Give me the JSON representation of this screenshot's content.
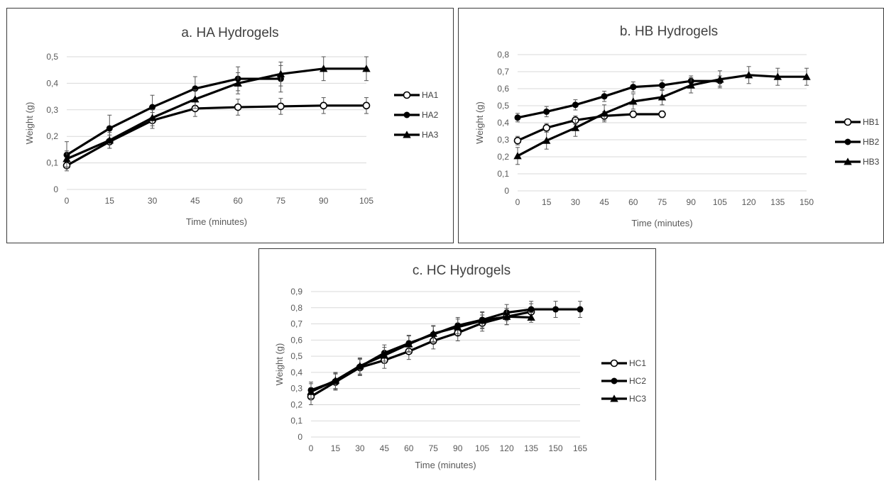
{
  "chart_data": [
    {
      "type": "line",
      "title": "a. HA Hydrogels",
      "xlabel": "Time (minutes)",
      "ylabel": "Weight (g)",
      "x": [
        0,
        15,
        30,
        45,
        60,
        75,
        90,
        105
      ],
      "x_ticks": [
        "0",
        "15",
        "30",
        "45",
        "60",
        "75",
        "90",
        "105"
      ],
      "y_ticks": [
        "0",
        "0,1",
        "0,2",
        "0,3",
        "0,4",
        "0,5"
      ],
      "ylim": [
        0,
        0.5
      ],
      "grid": true,
      "legend_position": "right",
      "series": [
        {
          "name": "HA1",
          "marker": "open-circle",
          "values": [
            0.09,
            0.18,
            0.26,
            0.305,
            0.31,
            0.313,
            0.316,
            0.316
          ],
          "errors": [
            0.02,
            0.025,
            0.03,
            0.03,
            0.03,
            0.03,
            0.03,
            0.03
          ]
        },
        {
          "name": "HA2",
          "marker": "filled-circle",
          "values": [
            0.13,
            0.23,
            0.31,
            0.38,
            0.417,
            0.417,
            null,
            null
          ],
          "errors": [
            0.05,
            0.05,
            0.045,
            0.045,
            0.045,
            0.05,
            null,
            null
          ]
        },
        {
          "name": "HA3",
          "marker": "triangle",
          "values": [
            0.115,
            0.185,
            0.27,
            0.34,
            0.4,
            0.435,
            0.455,
            0.455
          ],
          "errors": [
            0.03,
            0.03,
            0.03,
            0.035,
            0.04,
            0.045,
            0.045,
            0.045
          ]
        }
      ]
    },
    {
      "type": "line",
      "title": "b. HB Hydrogels",
      "xlabel": "Time (minutes)",
      "ylabel": "Weight (g)",
      "x": [
        0,
        15,
        30,
        45,
        60,
        75,
        90,
        105,
        120,
        135,
        150
      ],
      "x_ticks": [
        "0",
        "15",
        "30",
        "45",
        "60",
        "75",
        "90",
        "105",
        "120",
        "135",
        "150"
      ],
      "y_ticks": [
        "0",
        "0,1",
        "0,2",
        "0,3",
        "0,4",
        "0,5",
        "0,6",
        "0,7",
        "0,8"
      ],
      "ylim": [
        0,
        0.8
      ],
      "grid": true,
      "legend_position": "right",
      "series": [
        {
          "name": "HB1",
          "marker": "open-circle",
          "values": [
            0.295,
            0.37,
            0.415,
            0.44,
            0.45,
            0.45,
            null,
            null,
            null,
            null,
            null
          ],
          "errors": [
            0.025,
            0.025,
            0.025,
            0.025,
            0.02,
            0.02,
            null,
            null,
            null,
            null,
            null
          ]
        },
        {
          "name": "HB2",
          "marker": "filled-circle",
          "values": [
            0.43,
            0.465,
            0.505,
            0.555,
            0.61,
            0.62,
            0.645,
            0.645,
            null,
            null,
            null
          ],
          "errors": [
            0.025,
            0.03,
            0.03,
            0.03,
            0.03,
            0.03,
            0.03,
            0.03,
            null,
            null,
            null
          ]
        },
        {
          "name": "HB3",
          "marker": "triangle",
          "values": [
            0.205,
            0.295,
            0.37,
            0.455,
            0.525,
            0.55,
            0.62,
            0.655,
            0.68,
            0.67,
            0.67
          ],
          "errors": [
            0.05,
            0.05,
            0.05,
            0.05,
            0.045,
            0.045,
            0.045,
            0.05,
            0.05,
            0.05,
            0.05
          ]
        }
      ]
    },
    {
      "type": "line",
      "title": "c. HC Hydrogels",
      "xlabel": "Time (minutes)",
      "ylabel": "Weight (g)",
      "x": [
        0,
        15,
        30,
        45,
        60,
        75,
        90,
        105,
        120,
        135,
        150,
        165
      ],
      "x_ticks": [
        "0",
        "15",
        "30",
        "45",
        "60",
        "75",
        "90",
        "105",
        "120",
        "135",
        "150",
        "165"
      ],
      "y_ticks": [
        "0",
        "0,1",
        "0,2",
        "0,3",
        "0,4",
        "0,5",
        "0,6",
        "0,7",
        "0,8",
        "0,9"
      ],
      "ylim": [
        0,
        0.9
      ],
      "grid": true,
      "legend_position": "right",
      "series": [
        {
          "name": "HC1",
          "marker": "open-circle",
          "values": [
            0.25,
            0.34,
            0.43,
            0.475,
            0.53,
            0.595,
            0.645,
            0.705,
            0.745,
            0.775,
            null,
            null
          ],
          "errors": [
            0.05,
            0.05,
            0.05,
            0.05,
            0.05,
            0.05,
            0.05,
            0.05,
            0.05,
            0.05,
            null,
            null
          ]
        },
        {
          "name": "HC2",
          "marker": "filled-circle",
          "values": [
            0.29,
            0.345,
            0.435,
            0.52,
            0.58,
            0.635,
            0.69,
            0.725,
            0.77,
            0.79,
            0.79,
            0.79
          ],
          "errors": [
            0.05,
            0.05,
            0.05,
            0.05,
            0.05,
            0.05,
            0.05,
            0.05,
            0.05,
            0.05,
            0.05,
            0.05
          ]
        },
        {
          "name": "HC3",
          "marker": "triangle",
          "values": [
            0.28,
            0.35,
            0.44,
            0.505,
            0.575,
            0.64,
            0.68,
            0.72,
            0.745,
            0.74,
            null,
            null
          ],
          "errors": [
            0.05,
            0.05,
            0.05,
            0.05,
            0.05,
            0.05,
            0.05,
            0.05,
            0.05,
            0.03,
            null,
            null
          ]
        }
      ]
    }
  ]
}
